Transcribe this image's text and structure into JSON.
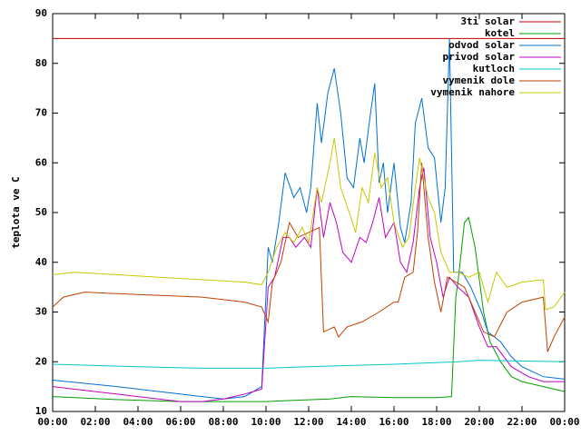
{
  "chart_data": {
    "type": "line",
    "ylabel": "teplota ve C",
    "xlim": [
      0,
      24
    ],
    "ylim": [
      10,
      90
    ],
    "yticks": [
      10,
      20,
      30,
      40,
      50,
      60,
      70,
      80,
      90
    ],
    "xticks": [
      {
        "value": 0,
        "label": "00:00"
      },
      {
        "value": 2,
        "label": "02:00"
      },
      {
        "value": 4,
        "label": "04:00"
      },
      {
        "value": 6,
        "label": "06:00"
      },
      {
        "value": 8,
        "label": "08:00"
      },
      {
        "value": 10,
        "label": "10:00"
      },
      {
        "value": 12,
        "label": "12:00"
      },
      {
        "value": 14,
        "label": "14:00"
      },
      {
        "value": 16,
        "label": "16:00"
      },
      {
        "value": 18,
        "label": "18:00"
      },
      {
        "value": 20,
        "label": "20:00"
      },
      {
        "value": 22,
        "label": "22:00"
      },
      {
        "value": 24,
        "label": "00:00"
      }
    ],
    "legend": "top-right",
    "series": [
      {
        "name": "3ti solar",
        "color": "#c00000",
        "x": [
          0,
          24
        ],
        "values": [
          85,
          85
        ]
      },
      {
        "name": "kotel",
        "color": "#00a000",
        "x": [
          0,
          3,
          6,
          10,
          11,
          13,
          14,
          16,
          18,
          18.7,
          18.9,
          19.0,
          19.3,
          19.5,
          19.8,
          20.2,
          20.5,
          21,
          21.5,
          22,
          23,
          24
        ],
        "values": [
          13,
          12.4,
          12,
          12,
          12.2,
          12.5,
          13,
          12.8,
          12.8,
          13,
          33,
          36,
          48,
          49,
          43,
          30,
          24,
          20,
          17,
          16,
          15,
          14
        ]
      },
      {
        "name": "odvod solar",
        "color": "#0070d0",
        "x": [
          0,
          3,
          5,
          7,
          8,
          9,
          9.8,
          10.1,
          10.3,
          10.6,
          10.9,
          11.3,
          11.6,
          11.9,
          12.1,
          12.4,
          12.6,
          12.9,
          13.2,
          13.5,
          13.8,
          14.1,
          14.4,
          14.6,
          14.9,
          15.1,
          15.3,
          15.5,
          15.7,
          16.0,
          16.3,
          16.5,
          16.8,
          17.0,
          17.3,
          17.6,
          17.9,
          18.2,
          18.4,
          18.6,
          18.8,
          19.2,
          19.6,
          20.1,
          20.4,
          20.7,
          21,
          21.5,
          22,
          23,
          24
        ],
        "values": [
          16.3,
          15,
          14,
          13,
          12.5,
          13,
          15,
          43,
          40,
          48,
          58,
          53,
          55,
          50,
          55,
          72,
          64,
          74,
          79,
          70,
          57,
          55,
          65,
          60,
          70,
          76,
          56,
          60,
          50,
          60,
          47,
          44,
          52,
          68,
          73,
          63,
          61,
          48,
          55,
          85,
          38,
          38,
          35,
          30,
          26,
          25,
          24,
          21,
          19,
          17,
          16.5
        ]
      },
      {
        "name": "privod solar",
        "color": "#c000c0",
        "x": [
          0,
          2,
          4,
          6,
          7,
          8,
          9,
          9.8,
          10.1,
          10.4,
          10.8,
          11.1,
          11.4,
          11.8,
          12.1,
          12.4,
          12.7,
          13.0,
          13.3,
          13.6,
          14.0,
          14.4,
          14.7,
          15.0,
          15.3,
          15.6,
          16.0,
          16.3,
          16.6,
          16.9,
          17.2,
          17.4,
          17.7,
          18.0,
          18.3,
          18.6,
          19,
          19.5,
          20,
          20.4,
          20.8,
          21.5,
          22.3,
          23,
          24
        ],
        "values": [
          15,
          14,
          13,
          12,
          12,
          12.5,
          13.5,
          14.5,
          35,
          37,
          45,
          45,
          43,
          45,
          43,
          55,
          45,
          52,
          48,
          42,
          40,
          45,
          44,
          48,
          53,
          45,
          48,
          40,
          38,
          44,
          55,
          59,
          45,
          40,
          33,
          37,
          35,
          33,
          27,
          23,
          23,
          19,
          17,
          16,
          16
        ]
      },
      {
        "name": "kutloch",
        "color": "#00c8c8",
        "x": [
          0,
          4,
          7,
          10,
          12,
          16,
          19,
          20,
          24
        ],
        "values": [
          19.5,
          19,
          18.7,
          18.7,
          19,
          19.5,
          20,
          20.3,
          20
        ]
      },
      {
        "name": "vymenik dole",
        "color": "#c04000",
        "x": [
          0,
          0.5,
          1.5,
          4,
          7,
          9,
          9.8,
          10.1,
          10.3,
          10.7,
          11.1,
          11.5,
          12,
          12.5,
          12.7,
          13.2,
          13.4,
          13.8,
          14.5,
          15.3,
          16.0,
          16.2,
          16.5,
          16.9,
          17.1,
          17.3,
          17.6,
          17.9,
          18.2,
          18.5,
          18.9,
          19.3,
          19.8,
          20.2,
          20.7,
          21.3,
          22,
          23,
          23.2,
          23.5,
          24
        ],
        "values": [
          31,
          33,
          34,
          33.5,
          33,
          32,
          31,
          28,
          36,
          40,
          48,
          45,
          46,
          47,
          26,
          27,
          25,
          27,
          28,
          30,
          32,
          32,
          37,
          38,
          46,
          60,
          45,
          36,
          30,
          37,
          36,
          35,
          30,
          26,
          25,
          30,
          32,
          33,
          22,
          25,
          29
        ]
      },
      {
        "name": "vymenik nahore",
        "color": "#c8c800",
        "x": [
          0,
          1,
          3,
          5,
          7,
          9,
          9.8,
          10.1,
          10.5,
          10.9,
          11.3,
          11.7,
          12.0,
          12.4,
          12.6,
          13,
          13.2,
          13.5,
          13.9,
          14.2,
          14.5,
          14.8,
          15.1,
          15.4,
          15.7,
          16.0,
          16.4,
          16.7,
          17.0,
          17.2,
          17.6,
          17.9,
          18.2,
          18.6,
          19,
          19.5,
          20,
          20.4,
          20.8,
          21.3,
          22,
          23,
          23.1,
          23.5,
          24
        ],
        "values": [
          37.5,
          38,
          37.5,
          37,
          36.5,
          36,
          35.5,
          38,
          43,
          46,
          44,
          47,
          44,
          55,
          52,
          60,
          65,
          55,
          50,
          46,
          55,
          52,
          62,
          55,
          57,
          48,
          43,
          45,
          55,
          61,
          53,
          50,
          42,
          38,
          38,
          37,
          38,
          32,
          38,
          35,
          36,
          36.5,
          30.5,
          31,
          34
        ]
      }
    ]
  }
}
